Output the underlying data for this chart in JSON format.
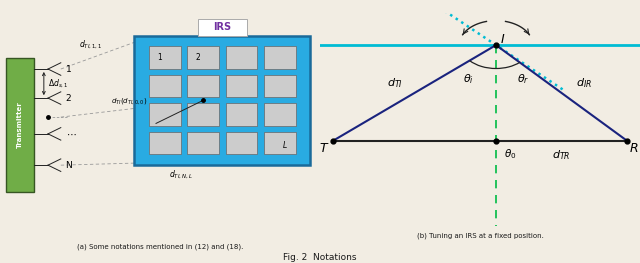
{
  "fig_width": 6.4,
  "fig_height": 2.63,
  "dpi": 100,
  "caption_a": "(a) Some notations mentioned in (12) and (18).",
  "caption_b": "(b) Tuning an IRS at a fixed position.",
  "fig_caption": "Fig. 2  Notations",
  "bg_color": "#f2ede3",
  "irs_color": "#29abe2",
  "irs_border": "#1a6a9a",
  "irs_label_color": "#7030a0",
  "element_color": "#cccccc",
  "transmitter_color": "#70ad47",
  "transmitter_border": "#375623",
  "text_color": "#1a1a1a",
  "dashed_line_color": "#999999",
  "cyan_line": "#00bcd4",
  "green_dashed": "#00bb44",
  "dark_line": "#222222",
  "navy_line": "#1a237e"
}
